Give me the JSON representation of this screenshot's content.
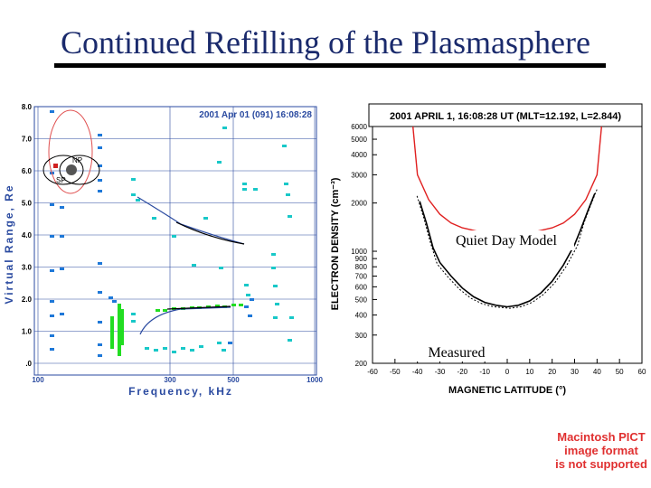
{
  "slide": {
    "title": "Continued Refilling of the Plasmasphere",
    "pict_note": [
      "Macintosh PICT",
      "image format",
      "is not supported"
    ]
  },
  "colors": {
    "title": "#1a2a6c",
    "grid_blue": "#2a4aa0",
    "blue_dot": "#1e78d8",
    "cyan_dot": "#18c8c8",
    "green_dot": "#22dd22",
    "model_red": "#e02020"
  },
  "chart_data": [
    {
      "type": "scatter",
      "title": "2001 Apr 01 (091) 16:08:28",
      "xlabel": "Frequency, kHz",
      "ylabel": "Virtual Range, Re",
      "x_tick_labels": [
        "100",
        "300",
        "500",
        "1000"
      ],
      "y_tick_labels": [
        "8.0",
        "7.0",
        "6.0",
        "5.0",
        "4.0",
        "3.0",
        "2.0",
        "1.0",
        ".0"
      ],
      "ylim": [
        0,
        8
      ],
      "inset_labels": [
        "NP",
        "SP"
      ]
    },
    {
      "type": "line",
      "title": "2001 APRIL 1, 16:08:28 UT (MLT=12.192, L=2.844)",
      "xlabel": "MAGNETIC LATITUDE (°)",
      "ylabel": "ELECTRON DENSITY (cm⁻³)",
      "x_ticks": [
        -60,
        -50,
        -40,
        -30,
        -20,
        -10,
        0,
        10,
        20,
        30,
        40,
        50,
        60
      ],
      "y_ticks": [
        200,
        300,
        400,
        500,
        600,
        700,
        800,
        900,
        1000,
        2000,
        3000,
        4000,
        5000,
        6000
      ],
      "xlim": [
        -60,
        60
      ],
      "ylim": [
        200,
        6000
      ],
      "series": [
        {
          "name": "Quiet Day Model",
          "x": [
            -42,
            -40,
            -35,
            -30,
            -25,
            -20,
            -15,
            -10,
            -5,
            0,
            5,
            10,
            15,
            20,
            25,
            30,
            35,
            40,
            42
          ],
          "values": [
            6000,
            3000,
            2100,
            1700,
            1500,
            1400,
            1350,
            1300,
            1280,
            1270,
            1280,
            1300,
            1350,
            1400,
            1500,
            1700,
            2100,
            3000,
            6000
          ]
        },
        {
          "name": "Measured",
          "x": [
            -39,
            -36,
            -33,
            -30,
            -25,
            -20,
            -15,
            -10,
            -5,
            0,
            5,
            10,
            15,
            20,
            25,
            30,
            33,
            36,
            39
          ],
          "values": [
            2050,
            1500,
            1050,
            850,
            700,
            590,
            520,
            480,
            460,
            450,
            460,
            490,
            550,
            650,
            820,
            1100,
            1400,
            1800,
            2300
          ]
        }
      ],
      "annotations": [
        "Quiet Day Model",
        "Measured"
      ]
    }
  ]
}
